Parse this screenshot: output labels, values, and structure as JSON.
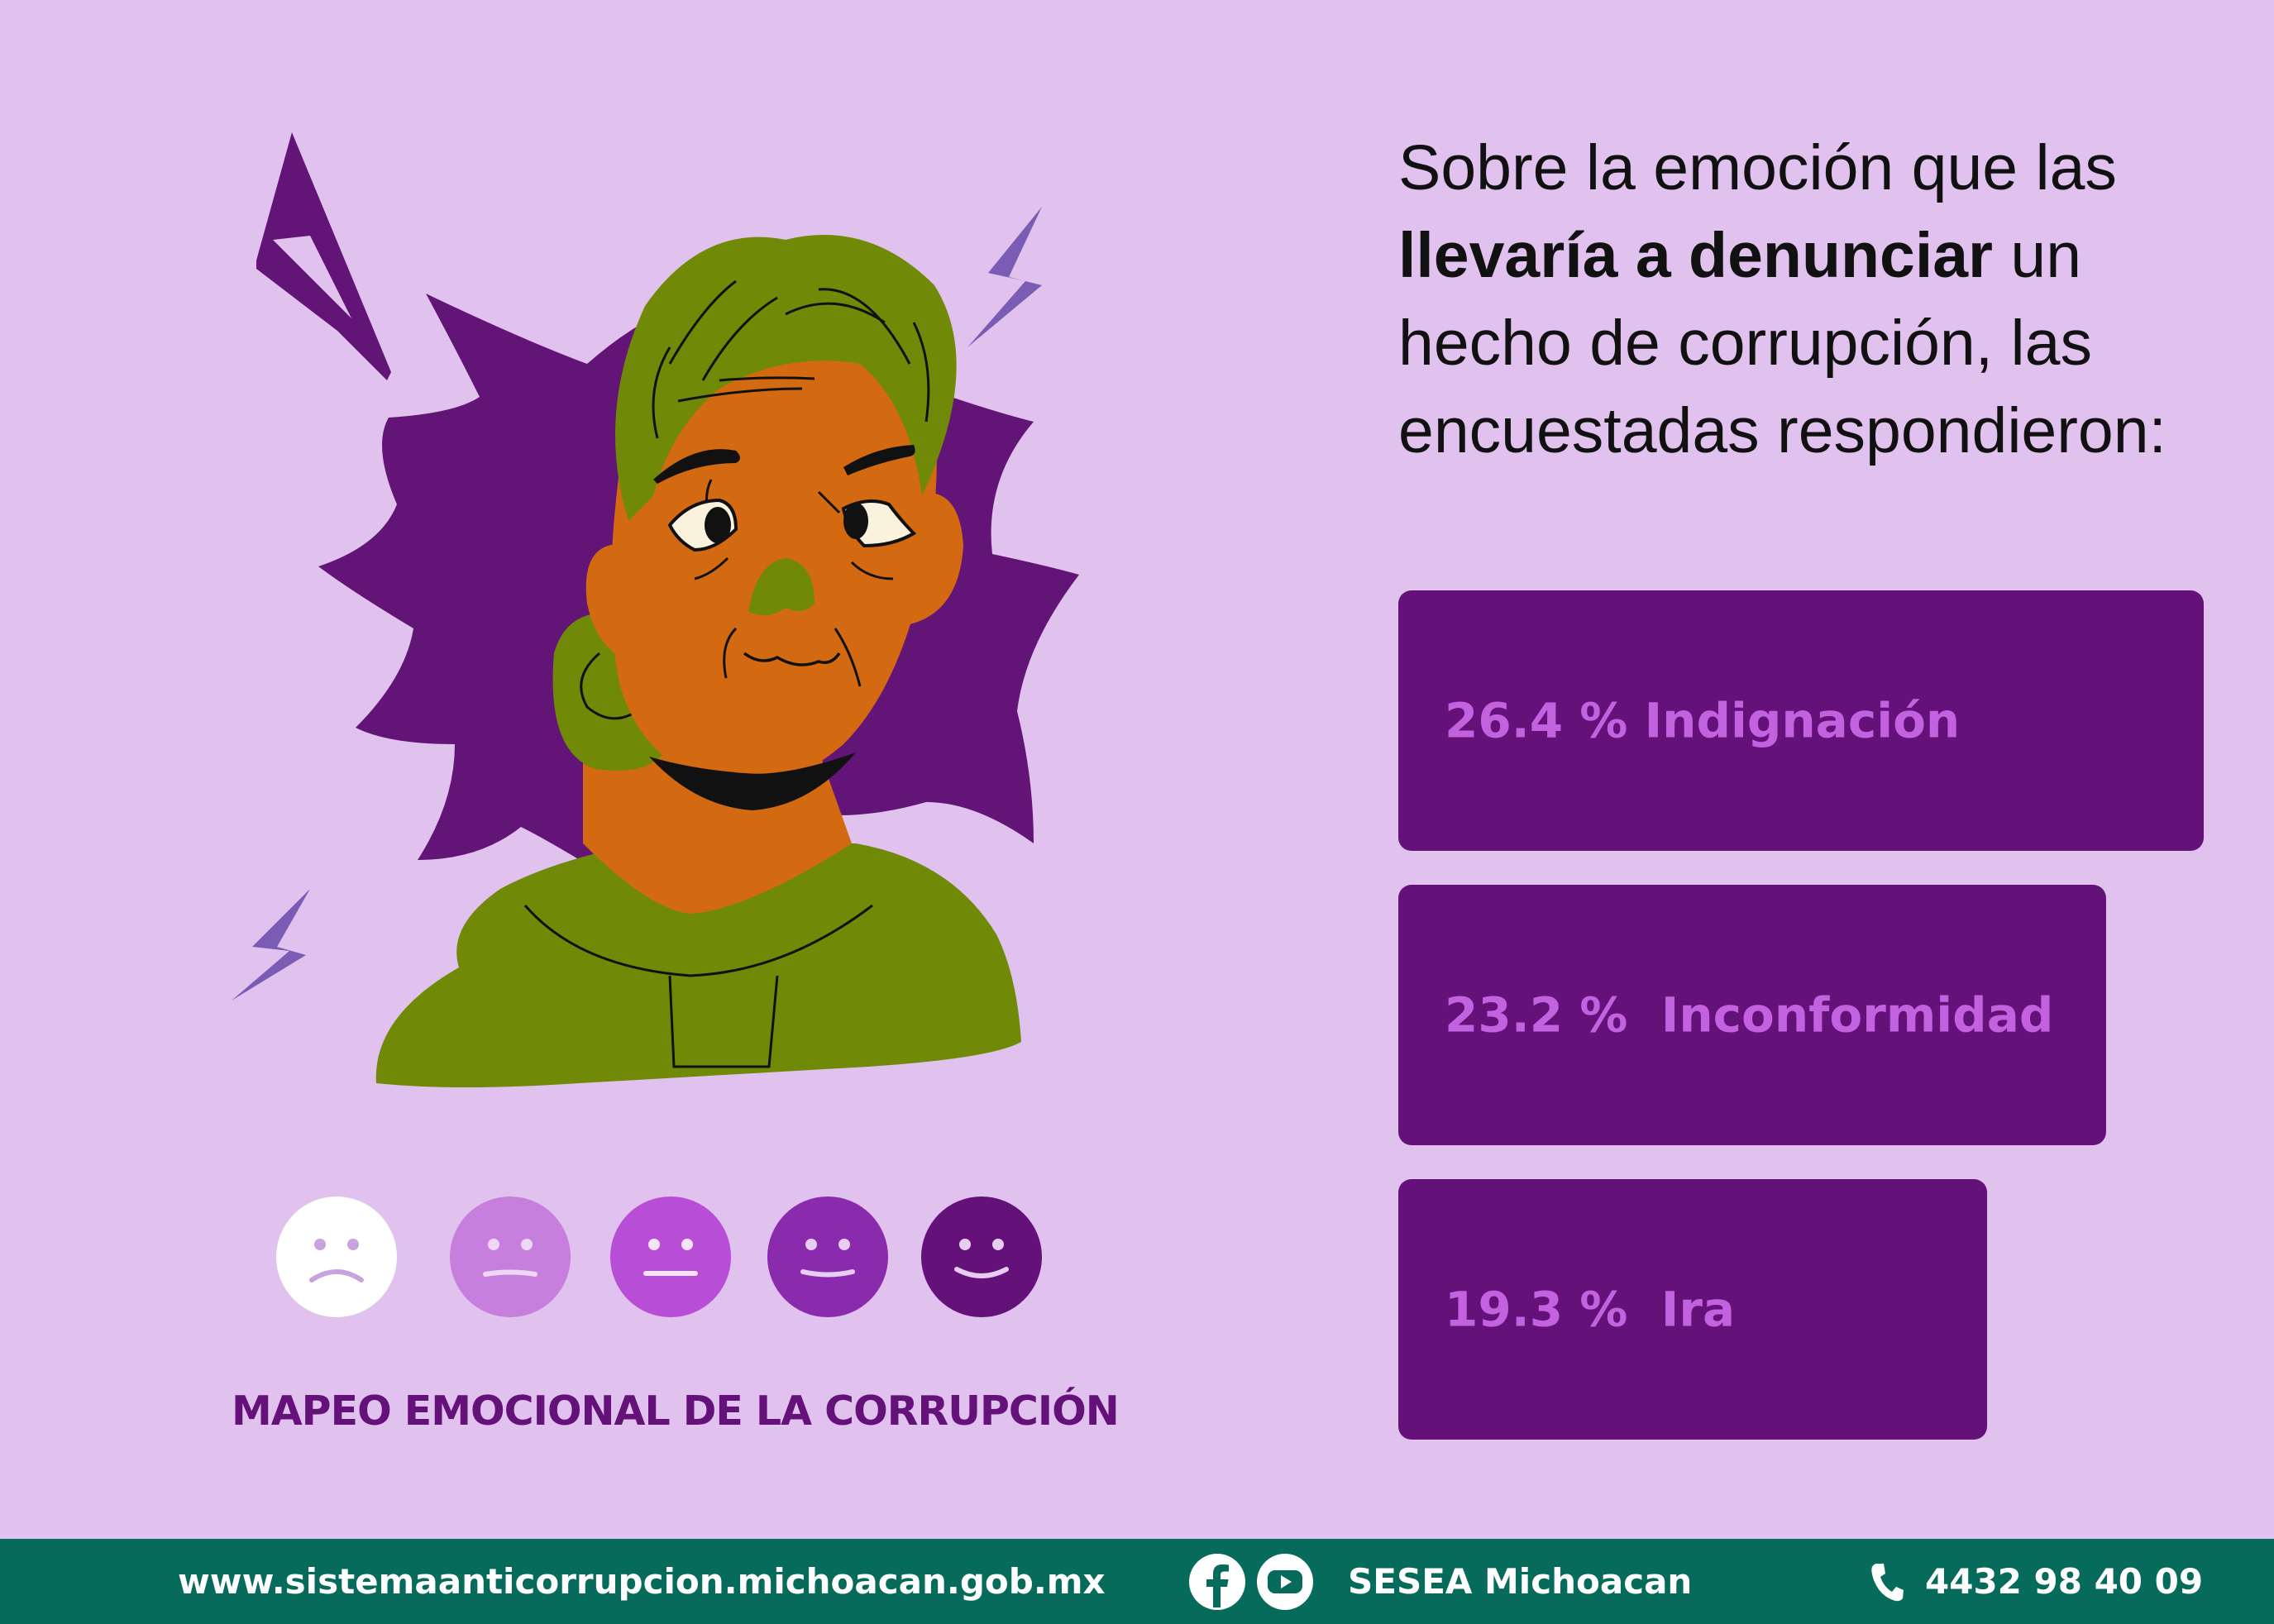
{
  "headline": {
    "part1": "Sobre la emoción que las ",
    "emphasis": "llevaría a denunciar",
    "part2": " un hecho de corrupción, las encuestadas respondieron:"
  },
  "caption": "MAPEO EMOCIONAL DE LA CORRUPCIÓN",
  "footer": {
    "website": "www.sistemaanticorrupcion.michoacan.gob.mx",
    "social": "SESEA Michoacan",
    "phone": "4432 98 40 09"
  },
  "colors": {
    "background": "#e1c1ee",
    "bar": "#64127a",
    "bar_text": "#c262df",
    "footer": "#066b5b",
    "caption": "#64127a"
  },
  "icons": [
    "facebook-icon",
    "youtube-icon",
    "phone-icon"
  ],
  "emotion_scale": {
    "faces": [
      {
        "mood": "sad",
        "color": "#ffffff"
      },
      {
        "mood": "neutral",
        "color": "#c67fdc"
      },
      {
        "mood": "neutral",
        "color": "#b84ed6"
      },
      {
        "mood": "content",
        "color": "#8a2aad"
      },
      {
        "mood": "happy",
        "color": "#64127a"
      }
    ]
  },
  "chart_data": {
    "type": "bar",
    "orientation": "horizontal",
    "categories": [
      "Indignación",
      "Inconformidad",
      "Ira"
    ],
    "values": [
      26.4,
      23.2,
      19.3
    ],
    "labels": [
      "26.4 % Indignación",
      "23.2 %  Inconformidad",
      "19.3 %  Ira"
    ],
    "unit": "%"
  }
}
